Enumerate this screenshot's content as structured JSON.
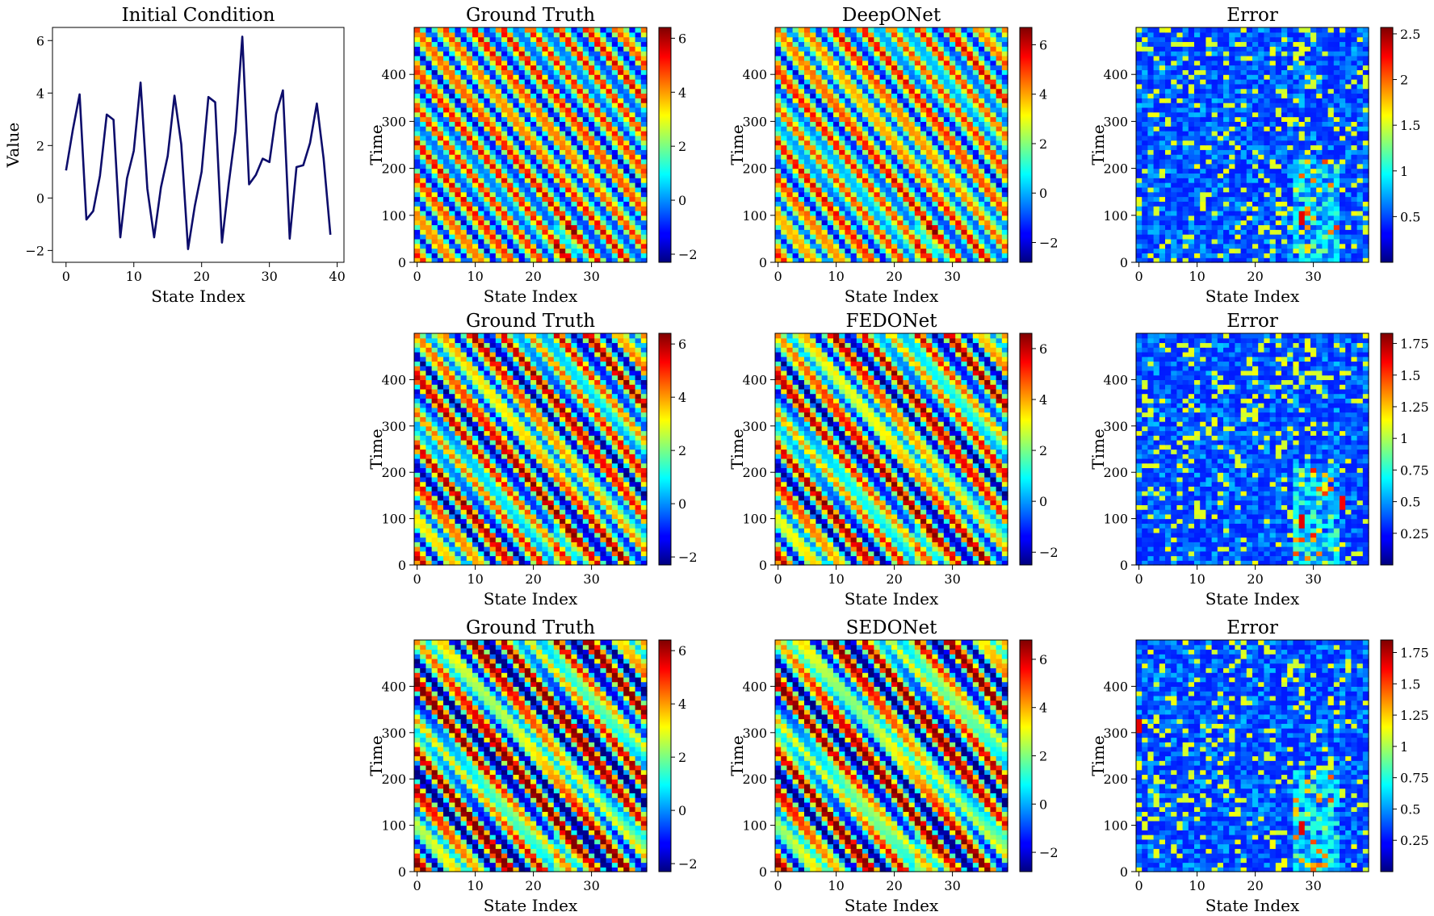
{
  "figure": {
    "panels": [
      {
        "title": "Initial Condition",
        "xlabel": "State Index",
        "ylabel": "Value"
      },
      {
        "title": "Ground Truth",
        "xlabel": "State Index",
        "ylabel": "Time"
      },
      {
        "title": "DeepONet",
        "xlabel": "State Index",
        "ylabel": "Time"
      },
      {
        "title": "Error",
        "xlabel": "State Index",
        "ylabel": "Time"
      },
      {
        "title": "Ground Truth",
        "xlabel": "State Index",
        "ylabel": "Time"
      },
      {
        "title": "FEDONet",
        "xlabel": "State Index",
        "ylabel": "Time"
      },
      {
        "title": "Error",
        "xlabel": "State Index",
        "ylabel": "Time"
      },
      {
        "title": "Ground Truth",
        "xlabel": "State Index",
        "ylabel": "Time"
      },
      {
        "title": "SEDONet",
        "xlabel": "State Index",
        "ylabel": "Time"
      },
      {
        "title": "Error",
        "xlabel": "State Index",
        "ylabel": "Time"
      }
    ]
  },
  "chart_data": [
    {
      "type": "line",
      "title": "Initial Condition",
      "xlabel": "State Index",
      "ylabel": "Value",
      "color": "#0d0d6b",
      "x": [
        0,
        1,
        2,
        3,
        4,
        5,
        6,
        7,
        8,
        9,
        10,
        11,
        12,
        13,
        14,
        15,
        16,
        17,
        18,
        19,
        20,
        21,
        22,
        23,
        24,
        25,
        26,
        27,
        28,
        29,
        30,
        31,
        32,
        33,
        34,
        35,
        36,
        37,
        38,
        39
      ],
      "y": [
        1.05,
        2.6,
        3.95,
        -0.82,
        -0.5,
        0.85,
        3.18,
        2.98,
        -1.5,
        0.75,
        1.8,
        4.4,
        0.35,
        -1.5,
        0.4,
        1.6,
        3.9,
        2.05,
        -1.95,
        -0.3,
        1.0,
        3.85,
        3.65,
        -1.7,
        0.55,
        2.55,
        6.15,
        0.52,
        0.88,
        1.5,
        1.37,
        3.2,
        4.1,
        -1.55,
        1.18,
        1.25,
        2.1,
        3.6,
        1.5,
        -1.4
      ],
      "xlim": [
        -2,
        41
      ],
      "ylim": [
        -2.45,
        6.5
      ],
      "xticks": [
        0,
        10,
        20,
        30,
        40
      ],
      "yticks": [
        -2,
        0,
        2,
        4,
        6
      ]
    },
    {
      "type": "heatmap",
      "title": "Ground Truth",
      "xlabel": "State Index",
      "ylabel": "Time",
      "colormap": "jet",
      "x_range": [
        0,
        39
      ],
      "y_range": [
        0,
        499
      ],
      "xticks": [
        0,
        10,
        20,
        30
      ],
      "yticks": [
        0,
        100,
        200,
        300,
        400
      ],
      "colorbar": {
        "min": -2.3,
        "max": 6.4,
        "ticks": [
          -2,
          0,
          2,
          4,
          6
        ]
      }
    },
    {
      "type": "heatmap",
      "title": "DeepONet",
      "xlabel": "State Index",
      "ylabel": "Time",
      "colormap": "jet",
      "x_range": [
        0,
        39
      ],
      "y_range": [
        0,
        499
      ],
      "xticks": [
        0,
        10,
        20,
        30
      ],
      "yticks": [
        0,
        100,
        200,
        300,
        400
      ],
      "colorbar": {
        "min": -2.8,
        "max": 6.7,
        "ticks": [
          -2,
          0,
          2,
          4,
          6
        ]
      }
    },
    {
      "type": "heatmap",
      "title": "Error",
      "xlabel": "State Index",
      "ylabel": "Time",
      "colormap": "jet",
      "x_range": [
        0,
        39
      ],
      "y_range": [
        0,
        499
      ],
      "xticks": [
        0,
        10,
        20,
        30
      ],
      "yticks": [
        0,
        100,
        200,
        300,
        400
      ],
      "colorbar": {
        "min": 0.0,
        "max": 2.57,
        "ticks": [
          0.5,
          1.0,
          1.5,
          2.0,
          2.5
        ]
      }
    },
    {
      "type": "heatmap",
      "title": "Ground Truth",
      "xlabel": "State Index",
      "ylabel": "Time",
      "colormap": "jet",
      "x_range": [
        0,
        39
      ],
      "y_range": [
        0,
        499
      ],
      "xticks": [
        0,
        10,
        20,
        30
      ],
      "yticks": [
        0,
        100,
        200,
        300,
        400
      ],
      "colorbar": {
        "min": -2.3,
        "max": 6.4,
        "ticks": [
          -2,
          0,
          2,
          4,
          6
        ]
      }
    },
    {
      "type": "heatmap",
      "title": "FEDONet",
      "xlabel": "State Index",
      "ylabel": "Time",
      "colormap": "jet",
      "x_range": [
        0,
        39
      ],
      "y_range": [
        0,
        499
      ],
      "xticks": [
        0,
        10,
        20,
        30
      ],
      "yticks": [
        0,
        100,
        200,
        300,
        400
      ],
      "colorbar": {
        "min": -2.5,
        "max": 6.6,
        "ticks": [
          -2,
          0,
          2,
          4,
          6
        ]
      }
    },
    {
      "type": "heatmap",
      "title": "Error",
      "xlabel": "State Index",
      "ylabel": "Time",
      "colormap": "jet",
      "x_range": [
        0,
        39
      ],
      "y_range": [
        0,
        499
      ],
      "xticks": [
        0,
        10,
        20,
        30
      ],
      "yticks": [
        0,
        100,
        200,
        300,
        400
      ],
      "colorbar": {
        "min": 0.0,
        "max": 1.83,
        "ticks": [
          0.25,
          0.5,
          0.75,
          1.0,
          1.25,
          1.5,
          1.75
        ]
      }
    },
    {
      "type": "heatmap",
      "title": "Ground Truth",
      "xlabel": "State Index",
      "ylabel": "Time",
      "colormap": "jet",
      "x_range": [
        0,
        39
      ],
      "y_range": [
        0,
        499
      ],
      "xticks": [
        0,
        10,
        20,
        30
      ],
      "yticks": [
        0,
        100,
        200,
        300,
        400
      ],
      "colorbar": {
        "min": -2.3,
        "max": 6.4,
        "ticks": [
          -2,
          0,
          2,
          4,
          6
        ]
      }
    },
    {
      "type": "heatmap",
      "title": "SEDONet",
      "xlabel": "State Index",
      "ylabel": "Time",
      "colormap": "jet",
      "x_range": [
        0,
        39
      ],
      "y_range": [
        0,
        499
      ],
      "xticks": [
        0,
        10,
        20,
        30
      ],
      "yticks": [
        0,
        100,
        200,
        300,
        400
      ],
      "colorbar": {
        "min": -2.8,
        "max": 6.8,
        "ticks": [
          -2,
          0,
          2,
          4,
          6
        ]
      }
    },
    {
      "type": "heatmap",
      "title": "Error",
      "xlabel": "State Index",
      "ylabel": "Time",
      "colormap": "jet",
      "x_range": [
        0,
        39
      ],
      "y_range": [
        0,
        499
      ],
      "xticks": [
        0,
        10,
        20,
        30
      ],
      "yticks": [
        0,
        100,
        200,
        300,
        400
      ],
      "colorbar": {
        "min": 0.0,
        "max": 1.85,
        "ticks": [
          0.25,
          0.5,
          0.75,
          1.0,
          1.25,
          1.5,
          1.75
        ]
      }
    }
  ]
}
